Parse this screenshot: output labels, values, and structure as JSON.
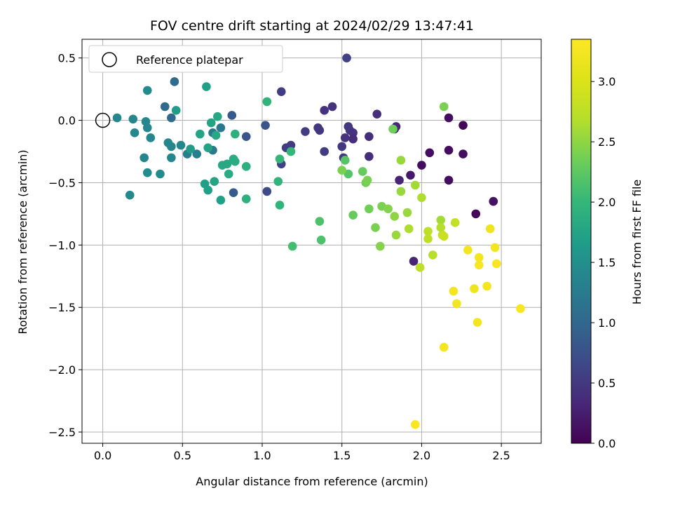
{
  "chart_data": {
    "type": "scatter",
    "title": "FOV centre drift starting at 2024/02/29 13:47:41",
    "xlabel": "Angular distance from reference (arcmin)",
    "ylabel": "Rotation from reference (arcmin)",
    "xlim": [
      -0.13,
      2.75
    ],
    "ylim": [
      -2.59,
      0.65
    ],
    "xticks": [
      0.0,
      0.5,
      1.0,
      1.5,
      2.0,
      2.5
    ],
    "xtick_labels": [
      "0.0",
      "0.5",
      "1.0",
      "1.5",
      "2.0",
      "2.5"
    ],
    "yticks": [
      0.5,
      0.0,
      -0.5,
      -1.0,
      -1.5,
      -2.0,
      -2.5
    ],
    "ytick_labels": [
      "0.5",
      "0.0",
      "−0.5",
      "−1.0",
      "−1.5",
      "−2.0",
      "−2.5"
    ],
    "grid": true,
    "legend": {
      "placement": "top-left",
      "entries": [
        "Reference platepar"
      ]
    },
    "reference_point": {
      "x": 0.0,
      "y": 0.0
    },
    "colorbar": {
      "label": "Hours from first FF file",
      "colormap": "viridis",
      "range": [
        0.0,
        3.35
      ],
      "ticks": [
        0.0,
        0.5,
        1.0,
        1.5,
        2.0,
        2.5,
        3.0
      ],
      "tick_labels": [
        "0.0",
        "0.5",
        "1.0",
        "1.5",
        "2.0",
        "2.5",
        "3.0"
      ]
    },
    "points": [
      {
        "x": 1.53,
        "y": 0.5,
        "c": 0.6
      },
      {
        "x": 1.12,
        "y": 0.23,
        "c": 0.55
      },
      {
        "x": 1.44,
        "y": 0.11,
        "c": 0.45
      },
      {
        "x": 1.39,
        "y": 0.08,
        "c": 0.45
      },
      {
        "x": 1.72,
        "y": 0.05,
        "c": 0.4
      },
      {
        "x": 1.35,
        "y": -0.06,
        "c": 0.5
      },
      {
        "x": 1.36,
        "y": -0.08,
        "c": 0.5
      },
      {
        "x": 1.27,
        "y": -0.09,
        "c": 0.55
      },
      {
        "x": 1.54,
        "y": -0.05,
        "c": 0.5
      },
      {
        "x": 1.55,
        "y": -0.08,
        "c": 0.5
      },
      {
        "x": 1.57,
        "y": -0.1,
        "c": 0.45
      },
      {
        "x": 1.52,
        "y": -0.14,
        "c": 0.45
      },
      {
        "x": 1.57,
        "y": -0.15,
        "c": 0.4
      },
      {
        "x": 1.67,
        "y": -0.13,
        "c": 0.4
      },
      {
        "x": 1.84,
        "y": -0.05,
        "c": 0.35
      },
      {
        "x": 1.83,
        "y": -0.07,
        "c": 0.35
      },
      {
        "x": 1.5,
        "y": -0.21,
        "c": 0.5
      },
      {
        "x": 1.51,
        "y": -0.3,
        "c": 0.5
      },
      {
        "x": 1.39,
        "y": -0.25,
        "c": 0.55
      },
      {
        "x": 1.18,
        "y": -0.2,
        "c": 0.55
      },
      {
        "x": 1.15,
        "y": -0.22,
        "c": 0.55
      },
      {
        "x": 1.67,
        "y": -0.29,
        "c": 0.4
      },
      {
        "x": 1.12,
        "y": -0.35,
        "c": 0.6
      },
      {
        "x": 1.03,
        "y": -0.57,
        "c": 0.7
      },
      {
        "x": 1.02,
        "y": -0.04,
        "c": 0.8
      },
      {
        "x": 0.9,
        "y": -0.13,
        "c": 0.8
      },
      {
        "x": 0.82,
        "y": -0.58,
        "c": 0.85
      },
      {
        "x": 0.81,
        "y": 0.04,
        "c": 0.85
      },
      {
        "x": 0.45,
        "y": 0.31,
        "c": 1.05
      },
      {
        "x": 0.39,
        "y": 0.11,
        "c": 1.05
      },
      {
        "x": 0.43,
        "y": 0.02,
        "c": 1.05
      },
      {
        "x": 0.28,
        "y": 0.24,
        "c": 1.45
      },
      {
        "x": 0.09,
        "y": 0.02,
        "c": 1.4
      },
      {
        "x": 0.19,
        "y": 0.01,
        "c": 1.4
      },
      {
        "x": 0.27,
        "y": -0.01,
        "c": 1.4
      },
      {
        "x": 0.28,
        "y": -0.06,
        "c": 1.4
      },
      {
        "x": 0.2,
        "y": -0.1,
        "c": 1.4
      },
      {
        "x": 0.3,
        "y": -0.14,
        "c": 1.4
      },
      {
        "x": 0.41,
        "y": -0.18,
        "c": 1.4
      },
      {
        "x": 0.43,
        "y": -0.21,
        "c": 1.4
      },
      {
        "x": 0.49,
        "y": -0.2,
        "c": 1.4
      },
      {
        "x": 0.43,
        "y": -0.3,
        "c": 1.4
      },
      {
        "x": 0.26,
        "y": -0.3,
        "c": 1.4
      },
      {
        "x": 0.28,
        "y": -0.42,
        "c": 1.45
      },
      {
        "x": 0.36,
        "y": -0.43,
        "c": 1.45
      },
      {
        "x": 0.17,
        "y": -0.6,
        "c": 1.45
      },
      {
        "x": 0.53,
        "y": -0.27,
        "c": 1.3
      },
      {
        "x": 0.59,
        "y": -0.27,
        "c": 1.3
      },
      {
        "x": 0.69,
        "y": -0.1,
        "c": 1.2
      },
      {
        "x": 0.74,
        "y": -0.06,
        "c": 1.2
      },
      {
        "x": 0.69,
        "y": -0.24,
        "c": 1.2
      },
      {
        "x": 0.46,
        "y": 0.08,
        "c": 1.65
      },
      {
        "x": 0.65,
        "y": 0.27,
        "c": 1.7
      },
      {
        "x": 0.55,
        "y": -0.23,
        "c": 1.65
      },
      {
        "x": 0.61,
        "y": -0.11,
        "c": 1.75
      },
      {
        "x": 0.68,
        "y": -0.02,
        "c": 1.75
      },
      {
        "x": 0.72,
        "y": 0.03,
        "c": 1.8
      },
      {
        "x": 0.71,
        "y": -0.12,
        "c": 1.8
      },
      {
        "x": 0.66,
        "y": -0.22,
        "c": 1.75
      },
      {
        "x": 0.64,
        "y": -0.51,
        "c": 1.7
      },
      {
        "x": 0.66,
        "y": -0.56,
        "c": 1.7
      },
      {
        "x": 0.7,
        "y": -0.49,
        "c": 1.75
      },
      {
        "x": 0.74,
        "y": -0.64,
        "c": 1.7
      },
      {
        "x": 0.75,
        "y": -0.36,
        "c": 1.8
      },
      {
        "x": 0.78,
        "y": -0.35,
        "c": 1.8
      },
      {
        "x": 0.82,
        "y": -0.31,
        "c": 1.85
      },
      {
        "x": 0.83,
        "y": -0.33,
        "c": 1.85
      },
      {
        "x": 0.79,
        "y": -0.43,
        "c": 1.85
      },
      {
        "x": 0.83,
        "y": -0.11,
        "c": 1.9
      },
      {
        "x": 0.9,
        "y": -0.37,
        "c": 1.9
      },
      {
        "x": 0.9,
        "y": -0.63,
        "c": 1.9
      },
      {
        "x": 1.03,
        "y": 0.15,
        "c": 1.95
      },
      {
        "x": 1.1,
        "y": -0.49,
        "c": 1.95
      },
      {
        "x": 1.11,
        "y": -0.68,
        "c": 1.95
      },
      {
        "x": 1.11,
        "y": -0.31,
        "c": 2.0
      },
      {
        "x": 1.18,
        "y": -0.25,
        "c": 2.0
      },
      {
        "x": 1.19,
        "y": -1.01,
        "c": 2.1
      },
      {
        "x": 1.36,
        "y": -0.81,
        "c": 2.15
      },
      {
        "x": 1.37,
        "y": -0.96,
        "c": 2.15
      },
      {
        "x": 1.52,
        "y": -0.32,
        "c": 2.2
      },
      {
        "x": 1.54,
        "y": -0.43,
        "c": 2.2
      },
      {
        "x": 1.5,
        "y": -0.4,
        "c": 2.4
      },
      {
        "x": 1.57,
        "y": -0.76,
        "c": 2.3
      },
      {
        "x": 1.63,
        "y": -0.41,
        "c": 2.3
      },
      {
        "x": 1.65,
        "y": -0.5,
        "c": 2.35
      },
      {
        "x": 1.66,
        "y": -0.48,
        "c": 2.4
      },
      {
        "x": 1.67,
        "y": -0.71,
        "c": 2.35
      },
      {
        "x": 1.71,
        "y": -0.86,
        "c": 2.4
      },
      {
        "x": 1.74,
        "y": -1.01,
        "c": 2.45
      },
      {
        "x": 1.75,
        "y": -0.69,
        "c": 2.4
      },
      {
        "x": 1.79,
        "y": -0.71,
        "c": 2.45
      },
      {
        "x": 1.82,
        "y": -0.07,
        "c": 2.35
      },
      {
        "x": 1.83,
        "y": -0.77,
        "c": 2.5
      },
      {
        "x": 1.84,
        "y": -0.92,
        "c": 2.55
      },
      {
        "x": 1.87,
        "y": -0.32,
        "c": 2.55
      },
      {
        "x": 1.87,
        "y": -0.57,
        "c": 2.55
      },
      {
        "x": 1.91,
        "y": -0.74,
        "c": 2.55
      },
      {
        "x": 1.92,
        "y": -0.87,
        "c": 2.65
      },
      {
        "x": 1.96,
        "y": -0.52,
        "c": 2.6
      },
      {
        "x": 2.0,
        "y": -0.62,
        "c": 2.65
      },
      {
        "x": 1.99,
        "y": -1.18,
        "c": 2.75
      },
      {
        "x": 2.04,
        "y": -0.89,
        "c": 2.75
      },
      {
        "x": 2.04,
        "y": -0.95,
        "c": 2.75
      },
      {
        "x": 2.07,
        "y": -1.08,
        "c": 2.7
      },
      {
        "x": 2.12,
        "y": -0.8,
        "c": 2.6
      },
      {
        "x": 2.12,
        "y": -0.86,
        "c": 2.7
      },
      {
        "x": 2.13,
        "y": -0.92,
        "c": 2.8
      },
      {
        "x": 2.14,
        "y": -0.93,
        "c": 2.85
      },
      {
        "x": 2.14,
        "y": 0.11,
        "c": 2.4
      },
      {
        "x": 2.21,
        "y": -0.82,
        "c": 2.8
      },
      {
        "x": 1.93,
        "y": -0.44,
        "c": 0.2
      },
      {
        "x": 1.86,
        "y": -0.48,
        "c": 0.3
      },
      {
        "x": 2.0,
        "y": -0.36,
        "c": 0.1
      },
      {
        "x": 2.05,
        "y": -0.26,
        "c": 0.1
      },
      {
        "x": 2.17,
        "y": 0.02,
        "c": 0.1
      },
      {
        "x": 2.17,
        "y": -0.24,
        "c": 0.1
      },
      {
        "x": 2.17,
        "y": -0.48,
        "c": 0.1
      },
      {
        "x": 2.26,
        "y": -0.04,
        "c": 0.05
      },
      {
        "x": 2.26,
        "y": -0.27,
        "c": 0.1
      },
      {
        "x": 2.34,
        "y": -0.75,
        "c": 0.05
      },
      {
        "x": 2.45,
        "y": -0.65,
        "c": 0.15
      },
      {
        "x": 1.95,
        "y": -1.13,
        "c": 0.3
      },
      {
        "x": 2.29,
        "y": -1.04,
        "c": 3.25
      },
      {
        "x": 2.36,
        "y": -1.1,
        "c": 3.25
      },
      {
        "x": 2.36,
        "y": -1.16,
        "c": 3.3
      },
      {
        "x": 2.43,
        "y": -0.87,
        "c": 3.2
      },
      {
        "x": 2.46,
        "y": -1.02,
        "c": 3.25
      },
      {
        "x": 2.47,
        "y": -1.15,
        "c": 3.3
      },
      {
        "x": 2.2,
        "y": -1.37,
        "c": 3.25
      },
      {
        "x": 2.22,
        "y": -1.47,
        "c": 3.25
      },
      {
        "x": 2.33,
        "y": -1.35,
        "c": 3.2
      },
      {
        "x": 2.41,
        "y": -1.33,
        "c": 3.25
      },
      {
        "x": 2.35,
        "y": -1.62,
        "c": 3.25
      },
      {
        "x": 2.14,
        "y": -1.82,
        "c": 3.25
      },
      {
        "x": 2.62,
        "y": -1.51,
        "c": 3.3
      },
      {
        "x": 1.96,
        "y": -2.44,
        "c": 3.3
      }
    ]
  }
}
